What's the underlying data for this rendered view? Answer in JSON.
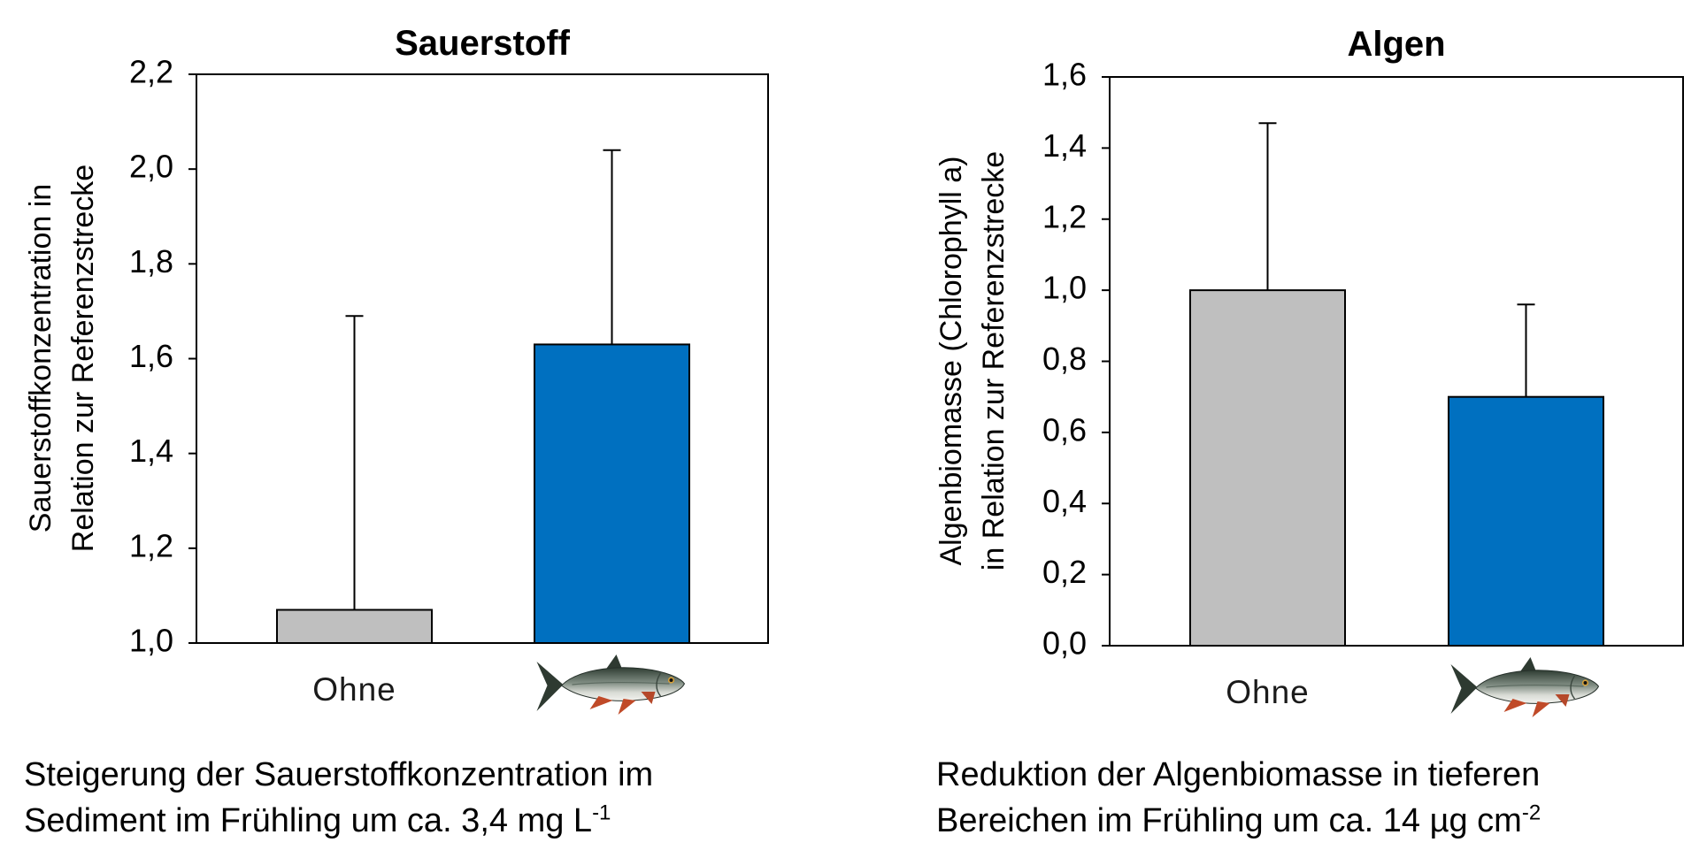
{
  "chart_data": [
    {
      "type": "bar",
      "title": "Sauerstoff",
      "ylabel": "Sauerstoffkonzentration in Relation zur Referenzstrecke",
      "ylabel_lines": [
        "Sauerstoffkonzentration in",
        "Relation zur Referenzstrecke"
      ],
      "xlabel": "",
      "categories": [
        "Ohne",
        ""
      ],
      "category_icons": [
        "",
        "fish-icon"
      ],
      "values": [
        1.07,
        1.63
      ],
      "error_upper": [
        0.62,
        0.41
      ],
      "ylim": [
        1.0,
        2.2
      ],
      "yticks": [
        1.0,
        1.2,
        1.4,
        1.6,
        1.8,
        2.0,
        2.2
      ],
      "ytick_labels": [
        "1,0",
        "1,2",
        "1,4",
        "1,6",
        "1,8",
        "2,0",
        "2,2"
      ],
      "bar_colors": [
        "#bfbfbf",
        "#0070c0"
      ],
      "grid": false,
      "legend": "none",
      "caption": {
        "line1": "Steigerung der Sauerstoffkonzentration im",
        "line2": "Sediment im Frühling um ca. 3,4 mg L",
        "sup": "-1"
      }
    },
    {
      "type": "bar",
      "title": "Algen",
      "ylabel": "Algenbiomasse (Chlorophyll a) in Relation zur Referenzstrecke",
      "ylabel_lines": [
        "Algenbiomasse (Chlorophyll a)",
        "in Relation zur Referenzstrecke"
      ],
      "xlabel": "",
      "categories": [
        "Ohne",
        ""
      ],
      "category_icons": [
        "",
        "fish-icon"
      ],
      "values": [
        1.0,
        0.7
      ],
      "error_upper": [
        0.47,
        0.26
      ],
      "ylim": [
        0.0,
        1.6
      ],
      "yticks": [
        0.0,
        0.2,
        0.4,
        0.6,
        0.8,
        1.0,
        1.2,
        1.4,
        1.6
      ],
      "ytick_labels": [
        "0,0",
        "0,2",
        "0,4",
        "0,6",
        "0,8",
        "1,0",
        "1,2",
        "1,4",
        "1,6"
      ],
      "bar_colors": [
        "#bfbfbf",
        "#0070c0"
      ],
      "grid": false,
      "legend": "none",
      "caption": {
        "line1": "Reduktion der Algenbiomasse in tieferen",
        "line2": "Bereichen im Frühling um ca. 14 µg cm",
        "sup": "-2"
      }
    }
  ]
}
